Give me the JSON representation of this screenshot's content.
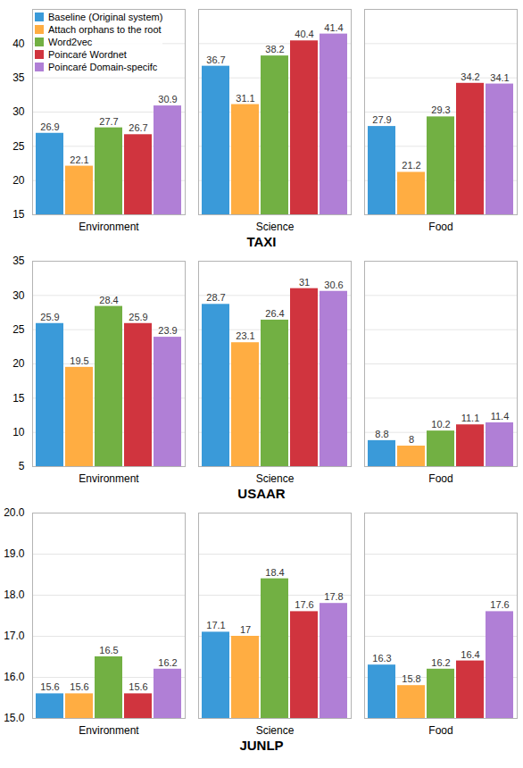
{
  "chart_data": [
    {
      "type": "bar",
      "title": "TAXI",
      "categories": [
        "Environment",
        "Science",
        "Food"
      ],
      "series": [
        {
          "name": "Baseline (Original system)",
          "color": "#3a9ad9",
          "values": [
            26.9,
            36.7,
            27.9
          ]
        },
        {
          "name": "Attach orphans to the root",
          "color": "#ffad42",
          "values": [
            22.1,
            31.1,
            21.2
          ]
        },
        {
          "name": "Word2vec",
          "color": "#72b043",
          "values": [
            27.7,
            38.2,
            29.3
          ]
        },
        {
          "name": "Poincaré Wordnet",
          "color": "#d0343e",
          "values": [
            26.7,
            40.4,
            34.2
          ]
        },
        {
          "name": "Poincaré Domain-specifc",
          "color": "#b07fd6",
          "values": [
            30.9,
            41.4,
            34.1
          ]
        }
      ],
      "ylim": [
        15,
        45
      ],
      "yticks": [
        15,
        20,
        25,
        30,
        35,
        40
      ],
      "grid": true,
      "data_labels": true,
      "legend": "top-left"
    },
    {
      "type": "bar",
      "title": "USAAR",
      "categories": [
        "Environment",
        "Science",
        "Food"
      ],
      "series": [
        {
          "name": "Baseline (Original system)",
          "color": "#3a9ad9",
          "values": [
            25.9,
            28.7,
            8.8
          ]
        },
        {
          "name": "Attach orphans to the root",
          "color": "#ffad42",
          "values": [
            19.5,
            23.1,
            8
          ]
        },
        {
          "name": "Word2vec",
          "color": "#72b043",
          "values": [
            28.4,
            26.4,
            10.2
          ]
        },
        {
          "name": "Poincaré Wordnet",
          "color": "#d0343e",
          "values": [
            25.9,
            31,
            11.1
          ]
        },
        {
          "name": "Poincaré Domain-specifc",
          "color": "#b07fd6",
          "values": [
            23.9,
            30.6,
            11.4
          ]
        }
      ],
      "ylim": [
        5,
        35
      ],
      "yticks": [
        5,
        10,
        15,
        20,
        25,
        30,
        35
      ],
      "grid": true,
      "data_labels": true
    },
    {
      "type": "bar",
      "title": "JUNLP",
      "categories": [
        "Environment",
        "Science",
        "Food"
      ],
      "series": [
        {
          "name": "Baseline (Original system)",
          "color": "#3a9ad9",
          "values": [
            15.6,
            17.1,
            16.3
          ]
        },
        {
          "name": "Attach orphans to the root",
          "color": "#ffad42",
          "values": [
            15.6,
            17,
            15.8
          ]
        },
        {
          "name": "Word2vec",
          "color": "#72b043",
          "values": [
            16.5,
            18.4,
            16.2
          ]
        },
        {
          "name": "Poincaré Wordnet",
          "color": "#d0343e",
          "values": [
            15.6,
            17.6,
            16.4
          ]
        },
        {
          "name": "Poincaré Domain-specifc",
          "color": "#b07fd6",
          "values": [
            16.2,
            17.8,
            17.6
          ]
        }
      ],
      "ylim": [
        15,
        20
      ],
      "yticks": [
        15,
        16,
        17,
        18,
        19,
        20
      ],
      "grid": true,
      "data_labels": true
    }
  ]
}
